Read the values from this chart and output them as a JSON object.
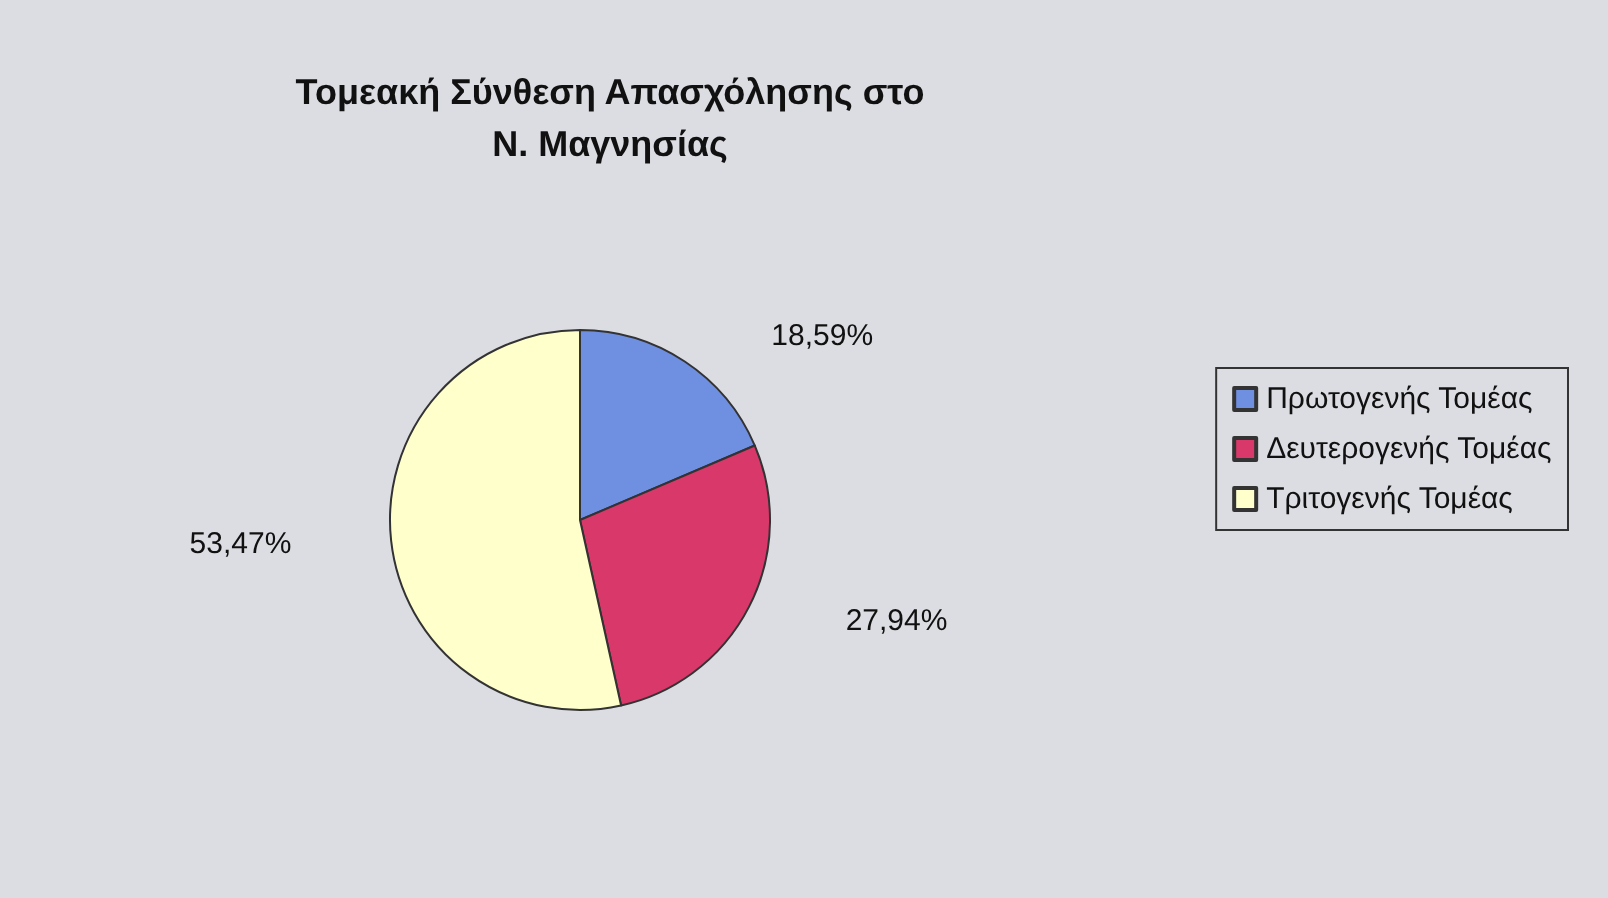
{
  "chart_data": {
    "type": "pie",
    "title": "Τομεακή Σύνθεση Απασχόλησης στο\nΝ. Μαγνησίας",
    "categories": [
      "Πρωτογενής Τομέας",
      "Δευτερογενής Τομέας",
      "Τριτογενής Τομέας"
    ],
    "values": [
      18.59,
      27.94,
      53.47
    ],
    "colors": [
      "#6f8fe0",
      "#d8386a",
      "#ffffcc"
    ],
    "value_labels": [
      "18,59%",
      "27,94%",
      "53,47%"
    ],
    "legend": "right"
  }
}
